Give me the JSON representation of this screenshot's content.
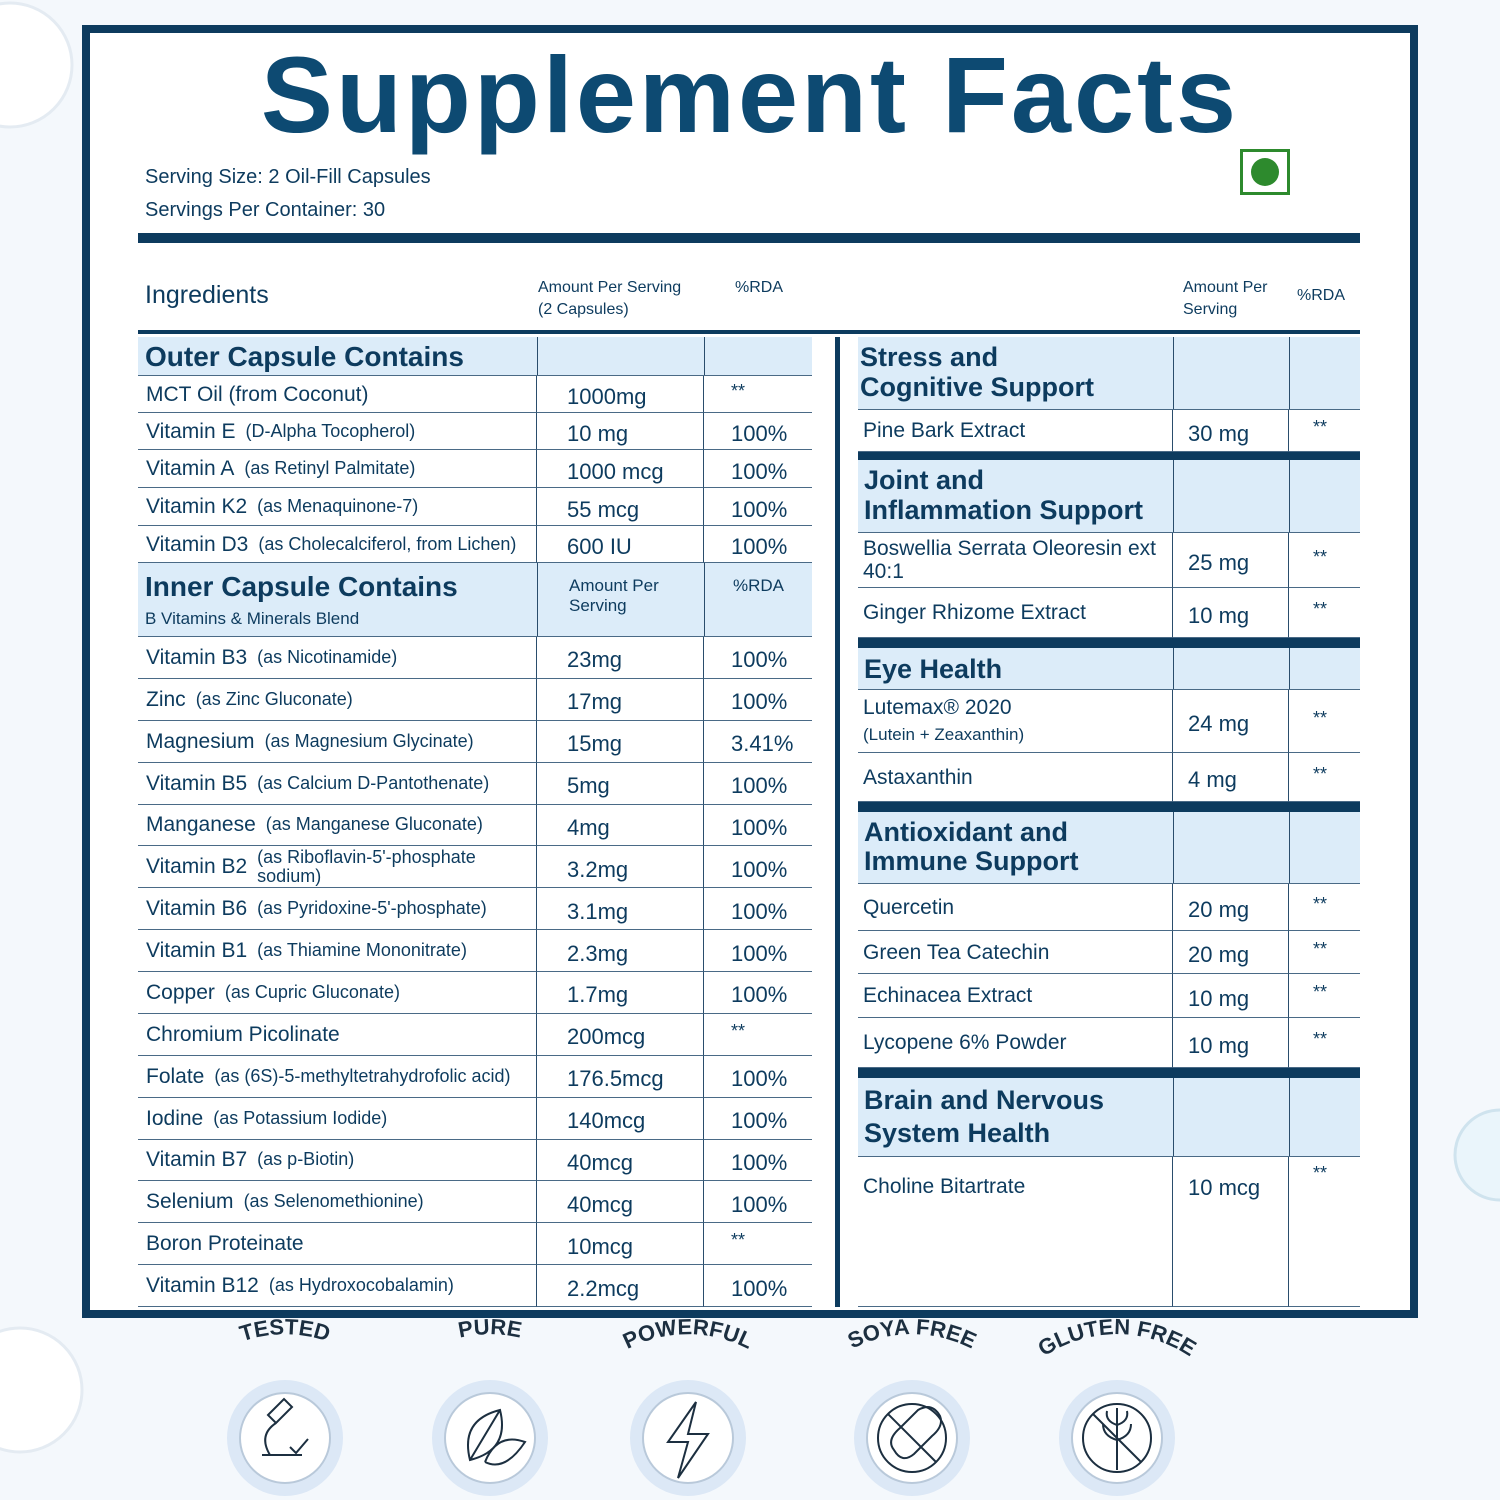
{
  "title": "Supplement Facts",
  "serving_size": "Serving Size: 2 Oil-Fill Capsules",
  "servings_per_container": "Servings Per Container: 30",
  "left_table": {
    "header": {
      "ingredients": "Ingredients",
      "amount": [
        "Amount Per Serving",
        "(2 Capsules)"
      ],
      "rda": "%RDA"
    },
    "sections": [
      {
        "title": "Outer Capsule Contains",
        "rows": [
          {
            "name": "MCT Oil (from Coconut)",
            "amount": "1000mg",
            "rda": "**"
          },
          {
            "name": "Vitamin E",
            "detail": "(D-Alpha Tocopherol)",
            "amount": "10 mg",
            "rda": "100%"
          },
          {
            "name": "Vitamin A",
            "detail": "(as Retinyl Palmitate)",
            "amount": "1000 mcg",
            "rda": "100%"
          },
          {
            "name": "Vitamin K2",
            "detail": "(as Menaquinone-7)",
            "amount": "55 mcg",
            "rda": "100%"
          },
          {
            "name": "Vitamin D3",
            "detail": "(as Cholecalciferol, from Lichen)",
            "amount": "600 IU",
            "rda": "100%"
          }
        ]
      },
      {
        "title": "Inner Capsule Contains",
        "subtitle": "B Vitamins & Minerals Blend",
        "amount_header": [
          "Amount Per",
          "Serving"
        ],
        "rda_header": "%RDA",
        "rows": [
          {
            "name": "Vitamin B3",
            "detail": "(as Nicotinamide)",
            "amount": "23mg",
            "rda": "100%"
          },
          {
            "name": "Zinc",
            "detail": "(as Zinc Gluconate)",
            "amount": "17mg",
            "rda": "100%"
          },
          {
            "name": "Magnesium",
            "detail": "(as Magnesium Glycinate)",
            "amount": "15mg",
            "rda": "3.41%"
          },
          {
            "name": "Vitamin B5",
            "detail": "(as Calcium D-Pantothenate)",
            "amount": "5mg",
            "rda": "100%"
          },
          {
            "name": "Manganese",
            "detail": "(as Manganese Gluconate)",
            "amount": "4mg",
            "rda": "100%"
          },
          {
            "name": "Vitamin B2",
            "detail": "(as Riboflavin-5'-phosphate sodium)",
            "amount": "3.2mg",
            "rda": "100%"
          },
          {
            "name": "Vitamin B6",
            "detail": "(as Pyridoxine-5'-phosphate)",
            "amount": "3.1mg",
            "rda": "100%"
          },
          {
            "name": "Vitamin B1",
            "detail": "(as Thiamine Mononitrate)",
            "amount": "2.3mg",
            "rda": "100%"
          },
          {
            "name": "Copper",
            "detail": "(as Cupric Gluconate)",
            "amount": "1.7mg",
            "rda": "100%"
          },
          {
            "name": "Chromium Picolinate",
            "amount": "200mcg",
            "rda": "**"
          },
          {
            "name": "Folate",
            "detail": "(as (6S)-5-methyltetrahydrofolic acid)",
            "amount": "176.5mcg",
            "rda": "100%"
          },
          {
            "name": "Iodine",
            "detail": "(as Potassium Iodide)",
            "amount": "140mcg",
            "rda": "100%"
          },
          {
            "name": "Vitamin B7",
            "detail": "(as p-Biotin)",
            "amount": "40mcg",
            "rda": "100%"
          },
          {
            "name": "Selenium",
            "detail": "(as Selenomethionine)",
            "amount": "40mcg",
            "rda": "100%"
          },
          {
            "name": "Boron Proteinate",
            "amount": "10mcg",
            "rda": "**"
          },
          {
            "name": "Vitamin B12",
            "detail": "(as Hydroxocobalamin)",
            "amount": "2.2mcg",
            "rda": "100%"
          }
        ]
      }
    ]
  },
  "right_table": {
    "header": {
      "amount": [
        "Amount Per",
        "Serving"
      ],
      "rda": "%RDA"
    },
    "sections": [
      {
        "title_lines": [
          "Stress and",
          "Cognitive Support"
        ],
        "rows": [
          {
            "name": "Pine Bark Extract",
            "amount": "30 mg",
            "rda": "**"
          }
        ]
      },
      {
        "title_lines": [
          "Joint and",
          "Inflammation Support"
        ],
        "rows": [
          {
            "name": "Boswellia Serrata Oleoresin ext 40:1",
            "amount": "25 mg",
            "rda": "**"
          },
          {
            "name": "Ginger Rhizome Extract",
            "amount": "10 mg",
            "rda": "**"
          }
        ]
      },
      {
        "title_lines": [
          "Eye Health"
        ],
        "rows": [
          {
            "name": "Lutemax® 2020",
            "detail": "(Lutein + Zeaxanthin)",
            "amount": "24 mg",
            "rda": "**"
          },
          {
            "name": "Astaxanthin",
            "amount": "4 mg",
            "rda": "**"
          }
        ]
      },
      {
        "title_lines": [
          "Antioxidant and",
          "Immune Support"
        ],
        "rows": [
          {
            "name": "Quercetin",
            "amount": "20 mg",
            "rda": "**"
          },
          {
            "name": "Green Tea Catechin",
            "amount": "20 mg",
            "rda": "**"
          },
          {
            "name": "Echinacea Extract",
            "amount": "10 mg",
            "rda": "**"
          },
          {
            "name": "Lycopene 6% Powder",
            "amount": "10 mg",
            "rda": "**"
          }
        ]
      },
      {
        "title_lines": [
          "Brain and Nervous",
          "System Health"
        ],
        "rows": [
          {
            "name": "Choline Bitartrate",
            "amount": "10 mcg",
            "rda": "**"
          }
        ]
      }
    ]
  },
  "badges": [
    "TESTED",
    "PURE",
    "POWERFUL",
    "SOYA  FREE",
    "GLUTEN FREE"
  ]
}
